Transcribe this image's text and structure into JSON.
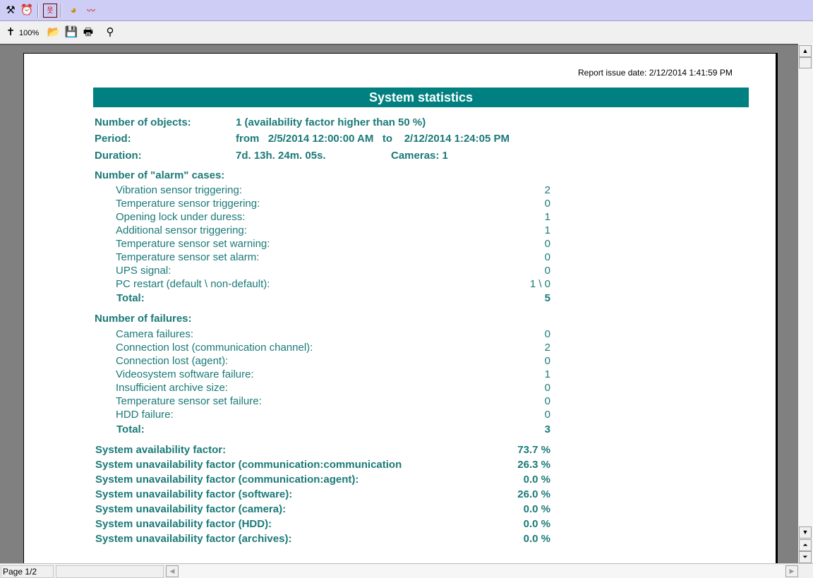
{
  "toolbar_top": {
    "icons": [
      "tools-icon",
      "alarm-clock-icon",
      "film-icon",
      "pie-chart-icon",
      "line-chart-icon"
    ]
  },
  "toolbar": {
    "zoom_label": "100%",
    "icons": [
      "zoom-icon",
      "open-folder-icon",
      "save-icon",
      "print-icon",
      "find-icon"
    ]
  },
  "report": {
    "issue_date": "Report issue date: 2/12/2014 1:41:59 PM",
    "title": "System statistics",
    "header_color": "#008080",
    "text_color": "#1a7a78",
    "objects_label": "Number of objects:",
    "objects_value": "1 (availability factor higher than 50 %)",
    "period_label": "Period:",
    "period_value": "from   2/5/2014 12:00:00 AM   to    2/12/2014 1:24:05 PM",
    "duration_label": "Duration:",
    "duration_value": "7d. 13h. 24m. 05s.",
    "cameras": "Cameras: 1",
    "alarm_title": "Number of \"alarm\" cases:",
    "alarms": [
      {
        "label": "Vibration sensor triggering:",
        "value": "2"
      },
      {
        "label": "Temperature sensor triggering:",
        "value": "0"
      },
      {
        "label": "Opening lock under duress:",
        "value": "1"
      },
      {
        "label": "Additional sensor triggering:",
        "value": "1"
      },
      {
        "label": "Temperature sensor set warning:",
        "value": "0"
      },
      {
        "label": "Temperature sensor set alarm:",
        "value": "0"
      },
      {
        "label": "UPS signal:",
        "value": "0"
      },
      {
        "label": "PC restart (default \\ non-default):",
        "value": "1 \\ 0"
      }
    ],
    "alarm_total_label": "Total:",
    "alarm_total": "5",
    "fail_title": "Number of failures:",
    "failures": [
      {
        "label": "Camera failures:",
        "value": "0"
      },
      {
        "label": "Connection lost (communication channel):",
        "value": "2"
      },
      {
        "label": "Connection lost (agent):",
        "value": "0"
      },
      {
        "label": "Videosystem software failure:",
        "value": "1"
      },
      {
        "label": "Insufficient archive size:",
        "value": "0"
      },
      {
        "label": "Temperature sensor set failure:",
        "value": "0"
      },
      {
        "label": "HDD failure:",
        "value": "0"
      }
    ],
    "fail_total_label": "Total:",
    "fail_total": "3",
    "factors": [
      {
        "label": "System availability factor:",
        "value": "73.7 %"
      },
      {
        "label": "System unavailability factor (communication:communication",
        "value": "26.3 %"
      },
      {
        "label": "System unavailability factor (communication:agent):",
        "value": "0.0 %"
      },
      {
        "label": "System unavailability factor (software):",
        "value": "26.0 %"
      },
      {
        "label": "System unavailability factor (camera):",
        "value": "0.0 %"
      },
      {
        "label": "System unavailability factor (HDD):",
        "value": "0.0 %"
      },
      {
        "label": "System unavailability factor (archives):",
        "value": "0.0 %"
      }
    ]
  },
  "status": {
    "page": "Page 1/2"
  }
}
